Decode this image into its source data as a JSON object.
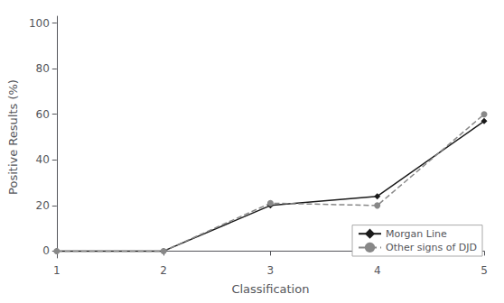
{
  "chart_data": {
    "type": "line",
    "x": [
      1,
      2,
      3,
      4,
      5
    ],
    "series": [
      {
        "name": "Morgan Line",
        "color": "#1a1a1a",
        "values": [
          0,
          0,
          20,
          24,
          57
        ],
        "marker": "diamond",
        "line_style": "solid"
      },
      {
        "name": "Other signs of DJD",
        "color": "#888888",
        "values": [
          0,
          0,
          21,
          20,
          60
        ],
        "marker": "circle",
        "line_style": "dashed"
      }
    ],
    "xlabel": "Classification",
    "ylabel": "Positive Results (%)",
    "xlim": [
      1,
      5
    ],
    "xticks": [
      1,
      2,
      3,
      4,
      5
    ],
    "ylim": [
      -3,
      103
    ],
    "yticks": [
      0,
      20,
      40,
      60,
      80,
      100
    ],
    "grid": false,
    "legend": "lower right"
  }
}
